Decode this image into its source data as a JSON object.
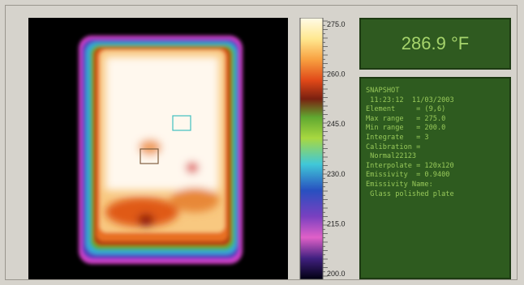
{
  "temperature": "286.9 °F",
  "scale": {
    "labels": [
      "275.0",
      "260.0",
      "245.0",
      "230.0",
      "215.0",
      "200.0"
    ]
  },
  "info": {
    "lines": [
      "SNAPSHOT",
      " 11:23:12  11/03/2003",
      "Element     = (9,6)",
      "Max range   = 275.0",
      "Min range   = 200.0",
      "Integrate   = 3",
      "Calibration =",
      " Normal22123",
      "Interpolate = 120x120",
      "Emissivity  = 0.9400",
      "Emissivity Name:",
      " Glass polished plate"
    ]
  }
}
